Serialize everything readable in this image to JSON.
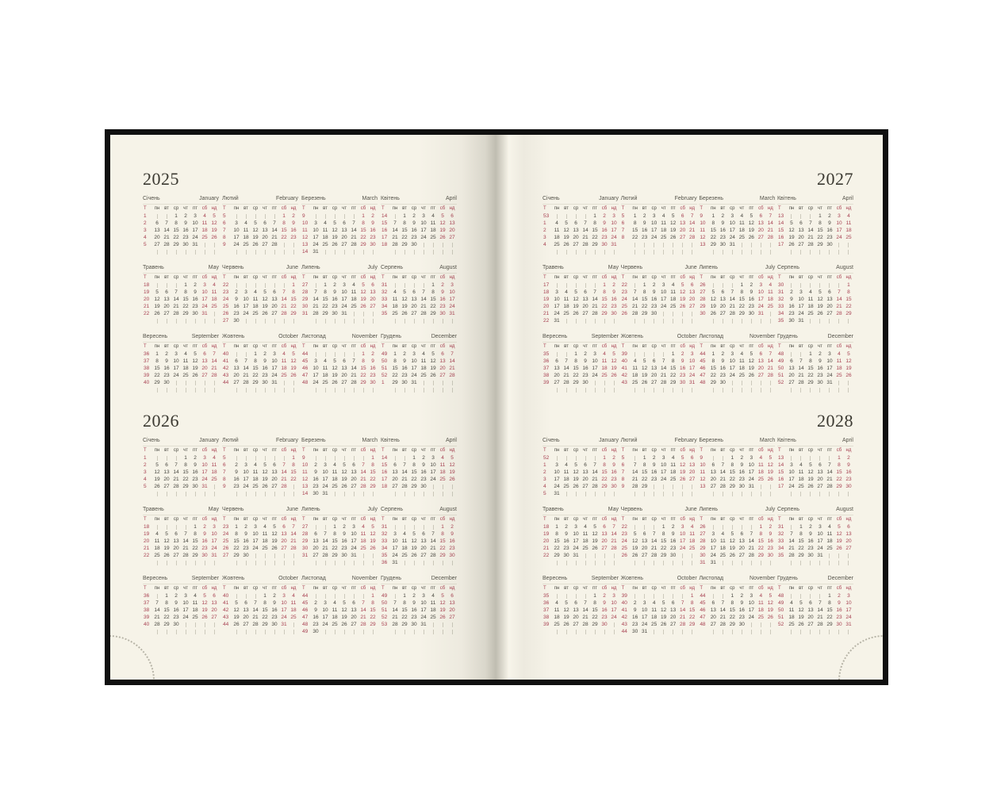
{
  "pages": {
    "left": {
      "year_blocks": [
        {
          "year": "2025",
          "align": "left"
        },
        {
          "year": "2026",
          "align": "left"
        }
      ]
    },
    "right": {
      "year_blocks": [
        {
          "year": "2027",
          "align": "right"
        },
        {
          "year": "2028",
          "align": "right"
        }
      ]
    }
  },
  "calendar": {
    "weekday_headers": [
      "Т",
      "пн",
      "вт",
      "ср",
      "чт",
      "пт",
      "сб",
      "нд"
    ],
    "weekend_headers": [
      "сб",
      "нд"
    ],
    "months": [
      {
        "uk": "Січень",
        "en": "January"
      },
      {
        "uk": "Лютий",
        "en": "February"
      },
      {
        "uk": "Березень",
        "en": "March"
      },
      {
        "uk": "Квітень",
        "en": "April"
      },
      {
        "uk": "Травень",
        "en": "May"
      },
      {
        "uk": "Червень",
        "en": "June"
      },
      {
        "uk": "Липень",
        "en": "July"
      },
      {
        "uk": "Серпень",
        "en": "August"
      },
      {
        "uk": "Вересень",
        "en": "September"
      },
      {
        "uk": "Жовтень",
        "en": "October"
      },
      {
        "uk": "Листопад",
        "en": "November"
      },
      {
        "uk": "Грудень",
        "en": "December"
      }
    ],
    "week_numbering": "ISO-8601",
    "week_starts_on": "Monday",
    "week_rows_per_month": 6
  },
  "colors": {
    "accent_red": "#a73f50",
    "text_dark": "#46453e",
    "month_name_gray": "#55534a",
    "page_cream": "#f6f3e8",
    "cover_black": "#101010",
    "empty_cell_tick": "#ccc9bb"
  }
}
